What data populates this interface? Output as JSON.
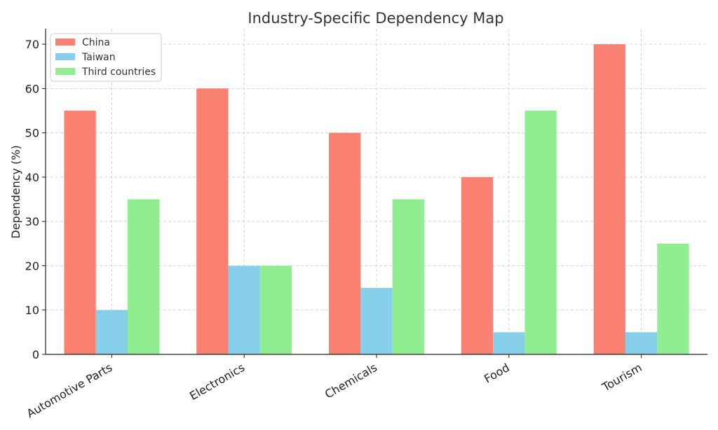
{
  "chart_data": {
    "type": "bar",
    "title": "Industry-Specific Dependency Map",
    "xlabel": "",
    "ylabel": "Dependency (%)",
    "categories": [
      "Automotive Parts",
      "Electronics",
      "Chemicals",
      "Food",
      "Tourism"
    ],
    "series": [
      {
        "name": "China",
        "color": "#FA8072",
        "values": [
          55,
          60,
          50,
          40,
          70
        ]
      },
      {
        "name": "Taiwan",
        "color": "#87CEEB",
        "values": [
          10,
          20,
          15,
          5,
          5
        ]
      },
      {
        "name": "Third countries",
        "color": "#90EE90",
        "values": [
          35,
          20,
          35,
          55,
          25
        ]
      }
    ],
    "ylim": [
      0,
      73.5
    ],
    "yticks": [
      0,
      10,
      20,
      30,
      40,
      50,
      60,
      70
    ],
    "grid": true,
    "legend_position": "top-left"
  }
}
